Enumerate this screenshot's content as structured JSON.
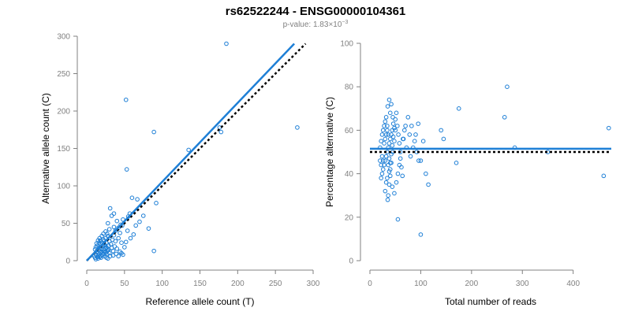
{
  "title": "rs62522244 - ENSG00000104361",
  "subtitle": {
    "prefix": "p-value: 1.83",
    "times": "×",
    "base": "10",
    "exponent": "−3"
  },
  "colors": {
    "point": "#1e7fd6",
    "fit": "#1e7fd6",
    "reference": "#000000",
    "axis": "#808080"
  },
  "chart_data": [
    {
      "type": "scatter",
      "name": "allele-count",
      "xlabel": "Reference allele count (T)",
      "ylabel": "Alternative allele count (C)",
      "xlim": [
        0,
        300
      ],
      "ylim": [
        0,
        300
      ],
      "xticks": [
        0,
        50,
        100,
        150,
        200,
        250,
        300
      ],
      "yticks": [
        0,
        50,
        100,
        150,
        200,
        250,
        300
      ],
      "fit_line": [
        [
          0,
          0
        ],
        [
          275,
          290
        ]
      ],
      "reference_line": [
        [
          0,
          0
        ],
        [
          290,
          290
        ]
      ],
      "points": [
        [
          52,
          215
        ],
        [
          185,
          290
        ],
        [
          279,
          178
        ],
        [
          89,
          172
        ],
        [
          53,
          122
        ],
        [
          89,
          13
        ],
        [
          176,
          178
        ],
        [
          178,
          172
        ],
        [
          135,
          148
        ],
        [
          92,
          77
        ],
        [
          75,
          60
        ],
        [
          82,
          43
        ],
        [
          60,
          84
        ],
        [
          67,
          82
        ],
        [
          57,
          63
        ],
        [
          55,
          59
        ],
        [
          48,
          55
        ],
        [
          45,
          48
        ],
        [
          40,
          53
        ],
        [
          42,
          44
        ],
        [
          47,
          47
        ],
        [
          38,
          40
        ],
        [
          36,
          45
        ],
        [
          33,
          60
        ],
        [
          31,
          70
        ],
        [
          36,
          63
        ],
        [
          28,
          50
        ],
        [
          30,
          42
        ],
        [
          27,
          36
        ],
        [
          25,
          30
        ],
        [
          22,
          28
        ],
        [
          20,
          24
        ],
        [
          24,
          21
        ],
        [
          26,
          18
        ],
        [
          28,
          14
        ],
        [
          30,
          10
        ],
        [
          35,
          13
        ],
        [
          40,
          16
        ],
        [
          44,
          12
        ],
        [
          50,
          18
        ],
        [
          48,
          8
        ],
        [
          15,
          10
        ],
        [
          16,
          14
        ],
        [
          17,
          18
        ],
        [
          18,
          22
        ],
        [
          19,
          6
        ],
        [
          21,
          8
        ],
        [
          23,
          12
        ],
        [
          25,
          16
        ],
        [
          27,
          9
        ],
        [
          14,
          5
        ],
        [
          12,
          8
        ],
        [
          13,
          12
        ],
        [
          11,
          15
        ],
        [
          10,
          6
        ],
        [
          11,
          4
        ],
        [
          12,
          2
        ],
        [
          15,
          3
        ],
        [
          17,
          5
        ],
        [
          19,
          4
        ],
        [
          20,
          12
        ],
        [
          22,
          15
        ],
        [
          24,
          19
        ],
        [
          18,
          27
        ],
        [
          16,
          24
        ],
        [
          14,
          20
        ],
        [
          12,
          18
        ],
        [
          13,
          23
        ],
        [
          15,
          27
        ],
        [
          17,
          30
        ],
        [
          20,
          33
        ],
        [
          22,
          36
        ],
        [
          25,
          39
        ],
        [
          28,
          33
        ],
        [
          30,
          26
        ],
        [
          32,
          22
        ],
        [
          34,
          28
        ],
        [
          36,
          34
        ],
        [
          38,
          26
        ],
        [
          42,
          30
        ],
        [
          44,
          37
        ],
        [
          46,
          24
        ],
        [
          37,
          19
        ],
        [
          33,
          17
        ],
        [
          29,
          20
        ],
        [
          26,
          24
        ],
        [
          23,
          26
        ],
        [
          21,
          20
        ],
        [
          19,
          16
        ],
        [
          16,
          7
        ],
        [
          24,
          6
        ],
        [
          26,
          4
        ],
        [
          28,
          3
        ],
        [
          31,
          6
        ],
        [
          35,
          7
        ],
        [
          39,
          9
        ],
        [
          42,
          6
        ],
        [
          46,
          10
        ],
        [
          52,
          25
        ],
        [
          54,
          40
        ],
        [
          58,
          30
        ],
        [
          62,
          35
        ],
        [
          65,
          47
        ],
        [
          70,
          52
        ],
        [
          18,
          11
        ],
        [
          21,
          10
        ],
        [
          23,
          9
        ],
        [
          25,
          11
        ],
        [
          27,
          13
        ],
        [
          29,
          15
        ]
      ]
    },
    {
      "type": "scatter",
      "name": "percentage-alternative",
      "xlabel": "Total number of reads",
      "ylabel": "Percentage alternative (C)",
      "xlim": [
        0,
        475
      ],
      "ylim": [
        0,
        100
      ],
      "xticks": [
        0,
        100,
        200,
        300,
        400
      ],
      "yticks": [
        0,
        20,
        40,
        60,
        80,
        100
      ],
      "fit_line": [
        [
          0,
          51.5
        ],
        [
          475,
          51.5
        ]
      ],
      "reference_line": [
        [
          0,
          50
        ],
        [
          475,
          50
        ]
      ],
      "points": [
        [
          270,
          80
        ],
        [
          265,
          66
        ],
        [
          175,
          70
        ],
        [
          470,
          61
        ],
        [
          460,
          39
        ],
        [
          350,
          50
        ],
        [
          285,
          52
        ],
        [
          170,
          45
        ],
        [
          140,
          60
        ],
        [
          145,
          56
        ],
        [
          100,
          12
        ],
        [
          100,
          46
        ],
        [
          105,
          55
        ],
        [
          110,
          40
        ],
        [
          115,
          35
        ],
        [
          55,
          19
        ],
        [
          95,
          63
        ],
        [
          90,
          58
        ],
        [
          85,
          52
        ],
        [
          80,
          48
        ],
        [
          75,
          66
        ],
        [
          70,
          62
        ],
        [
          65,
          56
        ],
        [
          60,
          50
        ],
        [
          58,
          44
        ],
        [
          55,
          40
        ],
        [
          52,
          36
        ],
        [
          50,
          60
        ],
        [
          48,
          55
        ],
        [
          45,
          50
        ],
        [
          42,
          45
        ],
        [
          40,
          42
        ],
        [
          38,
          35
        ],
        [
          36,
          30
        ],
        [
          35,
          28
        ],
        [
          40,
          68
        ],
        [
          42,
          72
        ],
        [
          38,
          74
        ],
        [
          35,
          71
        ],
        [
          45,
          66
        ],
        [
          46,
          63
        ],
        [
          44,
          60
        ],
        [
          42,
          58
        ],
        [
          40,
          56
        ],
        [
          38,
          54
        ],
        [
          36,
          52
        ],
        [
          34,
          50
        ],
        [
          32,
          48
        ],
        [
          30,
          46
        ],
        [
          28,
          44
        ],
        [
          26,
          42
        ],
        [
          24,
          40
        ],
        [
          22,
          38
        ],
        [
          20,
          52
        ],
        [
          22,
          55
        ],
        [
          24,
          58
        ],
        [
          26,
          60
        ],
        [
          28,
          62
        ],
        [
          30,
          64
        ],
        [
          32,
          66
        ],
        [
          34,
          60
        ],
        [
          36,
          58
        ],
        [
          38,
          47
        ],
        [
          40,
          45
        ],
        [
          42,
          49
        ],
        [
          44,
          53
        ],
        [
          46,
          57
        ],
        [
          48,
          61
        ],
        [
          50,
          65
        ],
        [
          52,
          68
        ],
        [
          54,
          62
        ],
        [
          56,
          58
        ],
        [
          58,
          54
        ],
        [
          60,
          47
        ],
        [
          62,
          43
        ],
        [
          64,
          39
        ],
        [
          66,
          56
        ],
        [
          68,
          60
        ],
        [
          72,
          52
        ],
        [
          78,
          58
        ],
        [
          82,
          62
        ],
        [
          88,
          55
        ],
        [
          92,
          50
        ],
        [
          96,
          46
        ],
        [
          30,
          32
        ],
        [
          32,
          36
        ],
        [
          34,
          38
        ],
        [
          26,
          46
        ],
        [
          24,
          48
        ],
        [
          22,
          44
        ],
        [
          20,
          46
        ],
        [
          28,
          54
        ],
        [
          30,
          56
        ],
        [
          32,
          58
        ],
        [
          34,
          62
        ],
        [
          36,
          44
        ],
        [
          38,
          41
        ],
        [
          40,
          39
        ],
        [
          44,
          34
        ],
        [
          48,
          31
        ]
      ]
    }
  ]
}
